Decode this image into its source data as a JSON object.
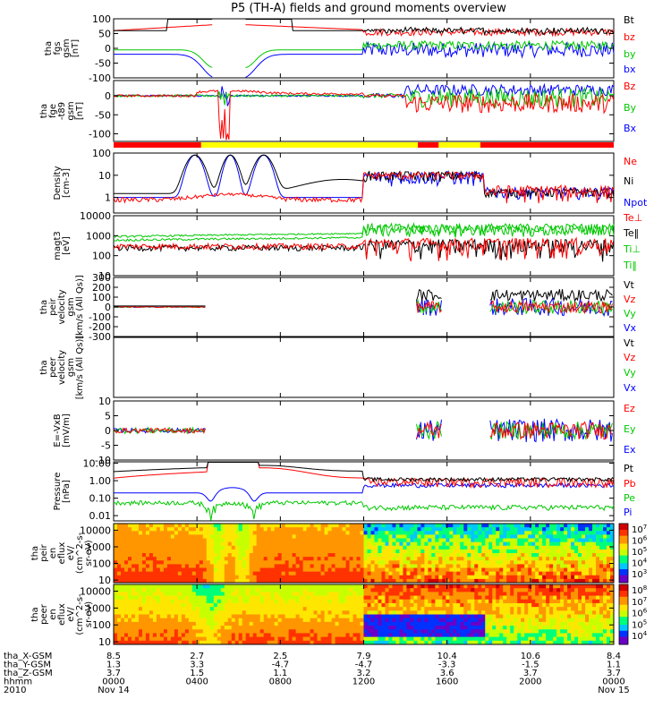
{
  "title": "P5 (TH-A) fields and ground moments overview",
  "chart_data": [
    {
      "type": "line",
      "ylabel": [
        "tha",
        "fgs",
        "gsm",
        "[nT]"
      ],
      "ylim": [
        -100,
        100
      ],
      "yticks": [
        100,
        50,
        0,
        -50,
        -100
      ],
      "series": [
        {
          "name": "Bt",
          "color": "#000000"
        },
        {
          "name": "bz",
          "color": "#ff0000"
        },
        {
          "name": "by",
          "color": "#00c800"
        },
        {
          "name": "bx",
          "color": "#0000ff"
        }
      ]
    },
    {
      "type": "line",
      "ylabel": [
        "tha",
        "fge",
        "-t89",
        "gsm",
        "[nT]"
      ],
      "ylim": [
        -120,
        40
      ],
      "yticks": [
        0,
        -50,
        -100
      ],
      "series": [
        {
          "name": "Bz",
          "color": "#ff0000"
        },
        {
          "name": "By",
          "color": "#00c800"
        },
        {
          "name": "Bx",
          "color": "#0000ff"
        }
      ]
    },
    {
      "type": "line",
      "ylabel": [
        "Density",
        "[cm-3]"
      ],
      "ylim": [
        0.2,
        100
      ],
      "yscale": "log",
      "yticks": [
        100,
        10,
        1
      ],
      "series": [
        {
          "name": "Ne",
          "color": "#ff0000"
        },
        {
          "name": "Ni",
          "color": "#000000"
        },
        {
          "name": "Npot",
          "color": "#0000ff"
        }
      ]
    },
    {
      "type": "line",
      "ylabel": [
        "magt3",
        "[eV]"
      ],
      "ylim": [
        10,
        10000
      ],
      "yscale": "log",
      "yticks": [
        10000,
        1000,
        100,
        10
      ],
      "series": [
        {
          "name": "Te⊥",
          "color": "#ff0000"
        },
        {
          "name": "Te‖",
          "color": "#000000"
        },
        {
          "name": "Ti⊥",
          "color": "#00c800"
        },
        {
          "name": "Ti‖",
          "color": "#00c800"
        }
      ]
    },
    {
      "type": "line",
      "ylabel": [
        "tha",
        "peir",
        "velocity",
        "gsm",
        "[km/s (All Qs)]"
      ],
      "ylim": [
        -300,
        300
      ],
      "yticks": [
        300,
        200,
        100,
        0,
        -100,
        -200,
        -300
      ],
      "series": [
        {
          "name": "Vt",
          "color": "#000000"
        },
        {
          "name": "Vz",
          "color": "#ff0000"
        },
        {
          "name": "Vy",
          "color": "#00c800"
        },
        {
          "name": "Vx",
          "color": "#0000ff"
        }
      ]
    },
    {
      "type": "line",
      "ylabel": [
        "tha",
        "peer",
        "velocity",
        "gsm",
        "[km/s (All Qs)]"
      ],
      "yticks": [],
      "series": [
        {
          "name": "Vt",
          "color": "#000000"
        },
        {
          "name": "Vz",
          "color": "#ff0000"
        },
        {
          "name": "Vy",
          "color": "#00c800"
        },
        {
          "name": "Vx",
          "color": "#0000ff"
        }
      ]
    },
    {
      "type": "line",
      "ylabel": [
        "E=-VxB",
        "[mV/m]"
      ],
      "ylim": [
        -10,
        10
      ],
      "yticks": [
        10,
        5,
        0,
        -5,
        -10
      ],
      "series": [
        {
          "name": "Ez",
          "color": "#ff0000"
        },
        {
          "name": "Ey",
          "color": "#00c800"
        },
        {
          "name": "Ex",
          "color": "#0000ff"
        }
      ]
    },
    {
      "type": "line",
      "ylabel": [
        "Pressure",
        "[nPa]"
      ],
      "ylim": [
        0.005,
        12
      ],
      "yscale": "log",
      "yticks": [
        "10.00",
        "1.00",
        "0.10",
        "0.01"
      ],
      "series": [
        {
          "name": "Pt",
          "color": "#000000"
        },
        {
          "name": "Pb",
          "color": "#ff0000"
        },
        {
          "name": "Pe",
          "color": "#00c800"
        },
        {
          "name": "Pi",
          "color": "#0000ff"
        }
      ]
    },
    {
      "type": "heatmap",
      "ylabel": [
        "tha",
        "peir",
        "en",
        "eflux",
        "eV/",
        "(cm^2-s-",
        "sr-eV)"
      ],
      "ylim": [
        7,
        25000
      ],
      "yscale": "log",
      "yticks": [
        10000,
        1000,
        100,
        10
      ],
      "colorbar_ticks": [
        "7",
        "6",
        "5",
        "4",
        "3"
      ]
    },
    {
      "type": "heatmap",
      "ylabel": [
        "tha",
        "peer",
        "en",
        "eflux",
        "eV/",
        "(cm^2-s-",
        "sr-eV)"
      ],
      "ylim": [
        7,
        25000
      ],
      "yscale": "log",
      "yticks": [
        10000,
        1000,
        100,
        10
      ],
      "colorbar_ticks": [
        "8",
        "7",
        "6",
        "5",
        "4"
      ]
    }
  ],
  "time_axis": {
    "start_hour": 0,
    "end_hour": 24,
    "row_labels": [
      "tha_X-GSM",
      "tha_Y-GSM",
      "tha_Z-GSM",
      "hhmm",
      "2010"
    ],
    "columns": [
      {
        "hour": 0,
        "values": [
          "8.5",
          "1.3",
          "3.7",
          "0000",
          "Nov 14"
        ]
      },
      {
        "hour": 4,
        "values": [
          "2.7",
          "3.3",
          "1.5",
          "0400",
          ""
        ]
      },
      {
        "hour": 8,
        "values": [
          "2.5",
          "-4.7",
          "1.1",
          "0800",
          ""
        ]
      },
      {
        "hour": 12,
        "values": [
          "7.9",
          "-4.7",
          "3.2",
          "1200",
          ""
        ]
      },
      {
        "hour": 16,
        "values": [
          "10.4",
          "-3.3",
          "3.6",
          "1600",
          ""
        ]
      },
      {
        "hour": 20,
        "values": [
          "10.6",
          "-1.5",
          "3.7",
          "2000",
          ""
        ]
      },
      {
        "hour": 24,
        "values": [
          "8.4",
          "1.1",
          "3.7",
          "0000",
          "Nov 15"
        ]
      }
    ]
  },
  "status_bar": [
    {
      "from": 0,
      "to": 4.2,
      "color": "#ff0000"
    },
    {
      "from": 4.2,
      "to": 14.6,
      "color": "#ffff00"
    },
    {
      "from": 14.6,
      "to": 15.6,
      "color": "#ff0000"
    },
    {
      "from": 15.6,
      "to": 17.6,
      "color": "#ffff00"
    },
    {
      "from": 17.6,
      "to": 24,
      "color": "#ff0000"
    }
  ]
}
